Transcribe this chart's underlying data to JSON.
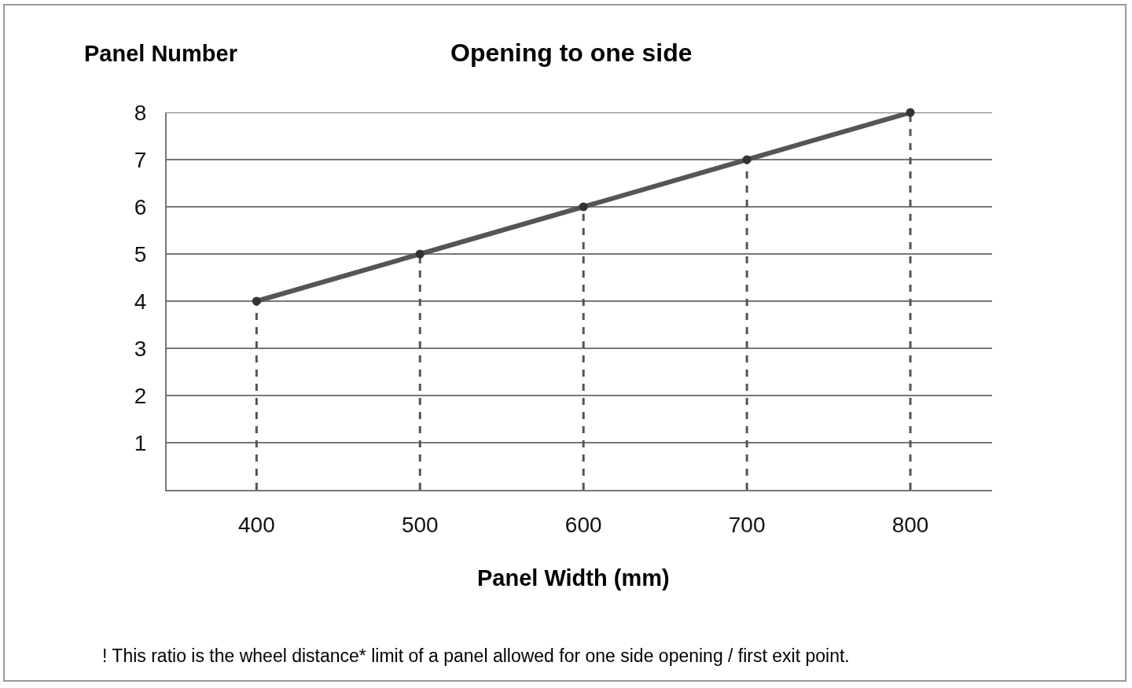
{
  "chart_data": {
    "type": "line",
    "title": "Opening to one side",
    "xlabel": "Panel Width (mm)",
    "ylabel": "Panel Number",
    "x": [
      400,
      500,
      600,
      700,
      800
    ],
    "series": [
      {
        "color": "#555555",
        "values": [
          4,
          5,
          6,
          7,
          8
        ]
      }
    ],
    "xlim": [
      345,
      850
    ],
    "xticks": [
      400,
      500,
      600,
      700,
      800
    ],
    "ylim": [
      0,
      8
    ],
    "yticks": [
      1,
      2,
      3,
      4,
      5,
      6,
      7,
      8
    ],
    "grid": "y",
    "marker": "circle",
    "line_style": "solid",
    "ref_lines": [
      {
        "axis": "x",
        "value": 400,
        "line_style": "dashed",
        "color": "#555555"
      },
      {
        "axis": "x",
        "value": 500,
        "line_style": "dashed",
        "color": "#555555"
      },
      {
        "axis": "x",
        "value": 600,
        "line_style": "dashed",
        "color": "#555555"
      },
      {
        "axis": "x",
        "value": 700,
        "line_style": "dashed",
        "color": "#555555"
      },
      {
        "axis": "x",
        "value": 800,
        "line_style": "dashed",
        "color": "#555555"
      }
    ],
    "annotations": [
      "! This ratio is the wheel distance* limit of a panel allowed for one side opening / first exit point."
    ]
  }
}
